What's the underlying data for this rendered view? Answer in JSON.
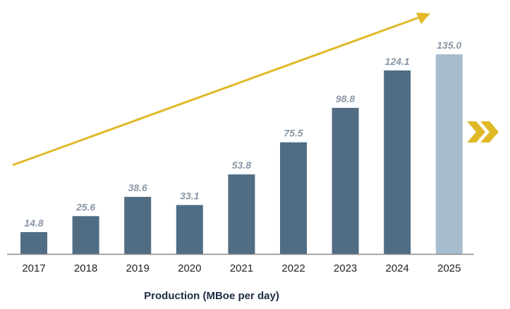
{
  "chart_data": {
    "type": "bar",
    "title": "",
    "xlabel": "Production (MBoe per day)",
    "ylabel": "",
    "categories": [
      "2017",
      "2018",
      "2019",
      "2020",
      "2021",
      "2022",
      "2023",
      "2024",
      "2025"
    ],
    "values": [
      14.8,
      25.6,
      38.6,
      33.1,
      53.8,
      75.5,
      98.8,
      124.1,
      135.0
    ],
    "value_labels": [
      "14.8",
      "25.6",
      "38.6",
      "33.1",
      "53.8",
      "75.5",
      "98.8",
      "124.1",
      "135.0"
    ],
    "ylim": [
      0,
      135
    ],
    "grid": false,
    "legend": "none",
    "colors": {
      "bar": "#506d84",
      "highlight_bar": "#a7bccd",
      "data_label": "#8a97a6",
      "trend_arrow": "#e0b928",
      "chevron": "#e0b928",
      "axis": "#8c8c8c"
    },
    "highlighted_category": "2025",
    "annotations": [
      "trend-arrow-up",
      "double-chevron-right"
    ]
  }
}
